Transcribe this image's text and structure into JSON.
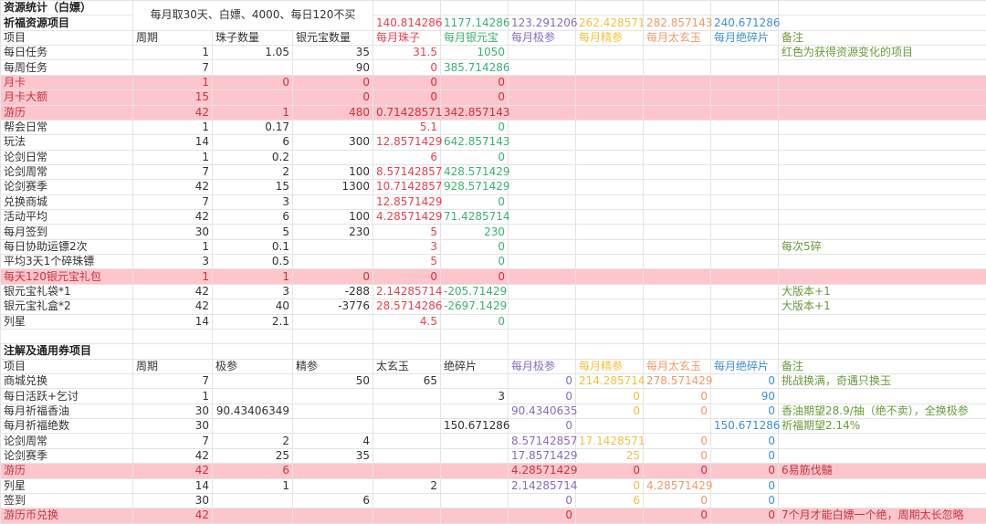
{
  "title": "资源统计（白嫖）",
  "section1_title": "祈福资源项目",
  "note_merged": "每月取30天、白嫖、4000、每日120不买",
  "totals": [
    "140.814286",
    "1177.14286",
    "123.291206",
    "262.428571",
    "282.857143",
    "240.671286"
  ],
  "colors": {
    "red": "#e8414e",
    "green": "#3bb272",
    "purple": "#8a6bbf",
    "yellow": "#f2c140",
    "orange": "#ef9a6a",
    "blue": "#3d8fd6",
    "note": "#6a9a3a",
    "pink_bg": "#fcc6cc"
  },
  "section1": {
    "headers": [
      "项目",
      "周期",
      "珠子数量",
      "银元宝数量",
      "每月珠子",
      "每月银元宝",
      "每月极参",
      "每月精参",
      "每月太玄玉",
      "每月绝碎片",
      "备注"
    ],
    "rows": [
      {
        "pink": false,
        "cells": [
          "每日任务",
          "1",
          "1.05",
          "35",
          "31.5",
          "1050",
          "",
          "",
          "",
          "",
          "红色为获得资源变化的项目"
        ]
      },
      {
        "pink": false,
        "cells": [
          "每周任务",
          "7",
          "",
          "90",
          "0",
          "385.714286",
          "",
          "",
          "",
          "",
          ""
        ]
      },
      {
        "pink": true,
        "cells": [
          "月卡",
          "1",
          "0",
          "0",
          "0",
          "0",
          "",
          "",
          "",
          "",
          ""
        ]
      },
      {
        "pink": true,
        "cells": [
          "月卡大额",
          "15",
          "",
          "0",
          "0",
          "0",
          "",
          "",
          "",
          "",
          ""
        ]
      },
      {
        "pink": true,
        "cells": [
          "游历",
          "42",
          "1",
          "480",
          "0.71428571",
          "342.857143",
          "",
          "",
          "",
          "",
          ""
        ]
      },
      {
        "pink": false,
        "cells": [
          "帮会日常",
          "1",
          "0.17",
          "",
          "5.1",
          "0",
          "",
          "",
          "",
          "",
          ""
        ]
      },
      {
        "pink": false,
        "cells": [
          "玩法",
          "14",
          "6",
          "300",
          "12.8571429",
          "642.857143",
          "",
          "",
          "",
          "",
          ""
        ]
      },
      {
        "pink": false,
        "cells": [
          "论剑日常",
          "1",
          "0.2",
          "",
          "6",
          "0",
          "",
          "",
          "",
          "",
          ""
        ]
      },
      {
        "pink": false,
        "cells": [
          "论剑周常",
          "7",
          "2",
          "100",
          "8.57142857",
          "428.571429",
          "",
          "",
          "",
          "",
          ""
        ]
      },
      {
        "pink": false,
        "cells": [
          "论剑赛季",
          "42",
          "15",
          "1300",
          "10.7142857",
          "928.571429",
          "",
          "",
          "",
          "",
          ""
        ]
      },
      {
        "pink": false,
        "cells": [
          "兑换商城",
          "7",
          "3",
          "",
          "12.8571429",
          "0",
          "",
          "",
          "",
          "",
          ""
        ]
      },
      {
        "pink": false,
        "cells": [
          "活动平均",
          "42",
          "6",
          "100",
          "4.28571429",
          "71.4285714",
          "",
          "",
          "",
          "",
          ""
        ]
      },
      {
        "pink": false,
        "cells": [
          "每月签到",
          "30",
          "5",
          "230",
          "5",
          "230",
          "",
          "",
          "",
          "",
          ""
        ]
      },
      {
        "pink": false,
        "cells": [
          "每日协助运镖2次",
          "1",
          "0.1",
          "",
          "3",
          "0",
          "",
          "",
          "",
          "",
          "每次5碎"
        ]
      },
      {
        "pink": false,
        "cells": [
          "平均3天1个碎珠镖",
          "3",
          "0.5",
          "",
          "5",
          "0",
          "",
          "",
          "",
          "",
          ""
        ]
      },
      {
        "pink": true,
        "cells": [
          "每天120银元宝礼包",
          "1",
          "1",
          "0",
          "0",
          "0",
          "",
          "",
          "",
          "",
          ""
        ]
      },
      {
        "pink": false,
        "cells": [
          "银元宝礼袋*1",
          "42",
          "3",
          "-288",
          "2.14285714",
          "-205.71429",
          "",
          "",
          "",
          "",
          "大版本+1"
        ]
      },
      {
        "pink": false,
        "cells": [
          "银元宝礼盒*2",
          "42",
          "40",
          "-3776",
          "28.5714286",
          "-2697.1429",
          "",
          "",
          "",
          "",
          "大版本+1"
        ]
      },
      {
        "pink": false,
        "cells": [
          "列星",
          "14",
          "2.1",
          "",
          "4.5",
          "0",
          "",
          "",
          "",
          "",
          ""
        ]
      }
    ]
  },
  "section2_title": "注解及通用券项目",
  "section2": {
    "headers": [
      "项目",
      "周期",
      "极参",
      "精参",
      "太玄玉",
      "绝碎片",
      "每月极参",
      "每月精参",
      "每月太玄玉",
      "每月绝碎片",
      "备注"
    ],
    "rows": [
      {
        "pink": false,
        "cells": [
          "商城兑换",
          "7",
          "",
          "50",
          "65",
          "",
          "0",
          "214.285714",
          "278.571429",
          "0",
          "挑战换满，奇遇只换玉"
        ]
      },
      {
        "pink": false,
        "cells": [
          "每日活跃+乞讨",
          "1",
          "",
          "",
          "",
          "3",
          "0",
          "0",
          "0",
          "90",
          ""
        ]
      },
      {
        "pink": false,
        "cells": [
          "每月祈福香油",
          "30",
          "90.43406349",
          "",
          "",
          "",
          "90.4340635",
          "0",
          "0",
          "0",
          "香油期望28.9/抽（绝不卖），全换极参"
        ]
      },
      {
        "pink": false,
        "cells": [
          "每月祈福绝数",
          "30",
          "",
          "",
          "",
          "150.671286",
          "0",
          "",
          "",
          "150.671286",
          "祈福期望2.14%"
        ]
      },
      {
        "pink": false,
        "cells": [
          "论剑周常",
          "7",
          "2",
          "4",
          "",
          "",
          "8.57142857",
          "17.1428571",
          "0",
          "0",
          ""
        ]
      },
      {
        "pink": false,
        "cells": [
          "论剑赛季",
          "42",
          "25",
          "35",
          "",
          "",
          "17.8571429",
          "25",
          "0",
          "0",
          ""
        ]
      },
      {
        "pink": true,
        "cells": [
          "游历",
          "42",
          "6",
          "",
          "",
          "",
          "4.28571429",
          "0",
          "0",
          "0",
          "6易筋伐髓"
        ]
      },
      {
        "pink": false,
        "cells": [
          "列星",
          "14",
          "1",
          "",
          "2",
          "",
          "2.14285714",
          "0",
          "4.28571429",
          "0",
          ""
        ]
      },
      {
        "pink": false,
        "cells": [
          "签到",
          "30",
          "",
          "6",
          "",
          "",
          "0",
          "6",
          "0",
          "0",
          ""
        ]
      },
      {
        "pink": true,
        "cells": [
          "游历币兑换",
          "42",
          "",
          "",
          "",
          "",
          "0",
          "",
          "0",
          "0",
          "7个月才能白嫖一个绝，周期太长忽略"
        ]
      }
    ]
  }
}
